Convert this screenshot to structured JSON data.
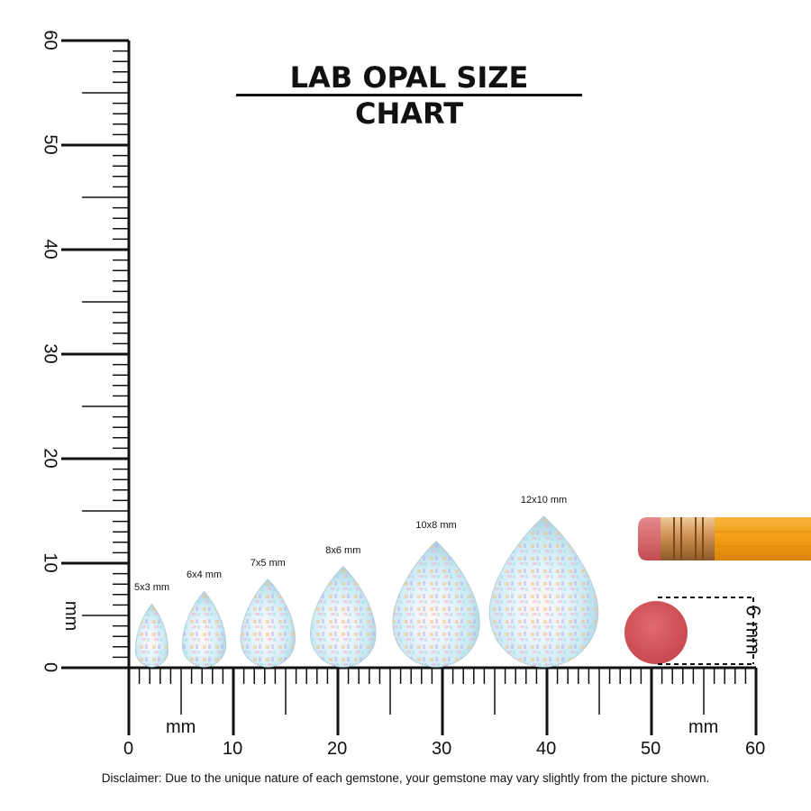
{
  "title": "LAB OPAL SIZE CHART",
  "disclaimer": "Disclaimer: Due to the unique nature of each gemstone, your gemstone may vary slightly from the picture shown.",
  "x_axis": {
    "unit": "mm",
    "labels": [
      "0",
      "10",
      "20",
      "30",
      "40",
      "50",
      "60"
    ]
  },
  "y_axis": {
    "unit": "mm",
    "labels": [
      "0",
      "10",
      "20",
      "30",
      "40",
      "50",
      "60"
    ]
  },
  "gems": [
    {
      "label": "5x3 mm",
      "length_mm": 5,
      "width_mm": 3
    },
    {
      "label": "6x4 mm",
      "length_mm": 6,
      "width_mm": 4
    },
    {
      "label": "7x5 mm",
      "length_mm": 7,
      "width_mm": 5
    },
    {
      "label": "8x6 mm",
      "length_mm": 8,
      "width_mm": 6
    },
    {
      "label": "10x8 mm",
      "length_mm": 10,
      "width_mm": 8
    },
    {
      "label": "12x10 mm",
      "length_mm": 12,
      "width_mm": 10
    }
  ],
  "eraser_label": "6 mm",
  "colors": {
    "ink": "#111111",
    "eraser": "#d4555b",
    "pencil_body": "#f4a21b",
    "ferrule": "#e2b06c"
  }
}
